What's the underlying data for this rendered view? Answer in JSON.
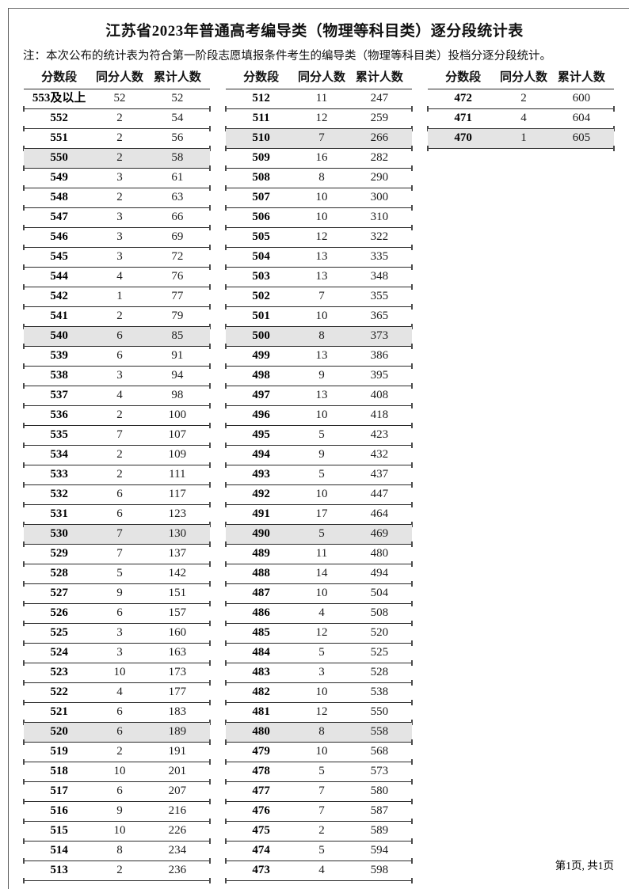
{
  "title": "江苏省2023年普通高考编导类（物理等科目类）逐分段统计表",
  "note": "注：本次公布的统计表为符合第一阶段志愿填报条件考生的编导类（物理等科目类）投档分逐分段统计。",
  "footer": "第1页, 共1页",
  "highlight_color": "#e4e4e4",
  "table": {
    "headers": [
      "分数段",
      "同分人数",
      "累计人数"
    ],
    "columns": [
      {
        "rows": [
          [
            "553及以上",
            52,
            52
          ],
          [
            "552",
            2,
            54
          ],
          [
            "551",
            2,
            56
          ],
          [
            "550",
            2,
            58
          ],
          [
            "549",
            3,
            61
          ],
          [
            "548",
            2,
            63
          ],
          [
            "547",
            3,
            66
          ],
          [
            "546",
            3,
            69
          ],
          [
            "545",
            3,
            72
          ],
          [
            "544",
            4,
            76
          ],
          [
            "542",
            1,
            77
          ],
          [
            "541",
            2,
            79
          ],
          [
            "540",
            6,
            85
          ],
          [
            "539",
            6,
            91
          ],
          [
            "538",
            3,
            94
          ],
          [
            "537",
            4,
            98
          ],
          [
            "536",
            2,
            100
          ],
          [
            "535",
            7,
            107
          ],
          [
            "534",
            2,
            109
          ],
          [
            "533",
            2,
            111
          ],
          [
            "532",
            6,
            117
          ],
          [
            "531",
            6,
            123
          ],
          [
            "530",
            7,
            130
          ],
          [
            "529",
            7,
            137
          ],
          [
            "528",
            5,
            142
          ],
          [
            "527",
            9,
            151
          ],
          [
            "526",
            6,
            157
          ],
          [
            "525",
            3,
            160
          ],
          [
            "524",
            3,
            163
          ],
          [
            "523",
            10,
            173
          ],
          [
            "522",
            4,
            177
          ],
          [
            "521",
            6,
            183
          ],
          [
            "520",
            6,
            189
          ],
          [
            "519",
            2,
            191
          ],
          [
            "518",
            10,
            201
          ],
          [
            "517",
            6,
            207
          ],
          [
            "516",
            9,
            216
          ],
          [
            "515",
            10,
            226
          ],
          [
            "514",
            8,
            234
          ],
          [
            "513",
            2,
            236
          ]
        ]
      },
      {
        "rows": [
          [
            "512",
            11,
            247
          ],
          [
            "511",
            12,
            259
          ],
          [
            "510",
            7,
            266
          ],
          [
            "509",
            16,
            282
          ],
          [
            "508",
            8,
            290
          ],
          [
            "507",
            10,
            300
          ],
          [
            "506",
            10,
            310
          ],
          [
            "505",
            12,
            322
          ],
          [
            "504",
            13,
            335
          ],
          [
            "503",
            13,
            348
          ],
          [
            "502",
            7,
            355
          ],
          [
            "501",
            10,
            365
          ],
          [
            "500",
            8,
            373
          ],
          [
            "499",
            13,
            386
          ],
          [
            "498",
            9,
            395
          ],
          [
            "497",
            13,
            408
          ],
          [
            "496",
            10,
            418
          ],
          [
            "495",
            5,
            423
          ],
          [
            "494",
            9,
            432
          ],
          [
            "493",
            5,
            437
          ],
          [
            "492",
            10,
            447
          ],
          [
            "491",
            17,
            464
          ],
          [
            "490",
            5,
            469
          ],
          [
            "489",
            11,
            480
          ],
          [
            "488",
            14,
            494
          ],
          [
            "487",
            10,
            504
          ],
          [
            "486",
            4,
            508
          ],
          [
            "485",
            12,
            520
          ],
          [
            "484",
            5,
            525
          ],
          [
            "483",
            3,
            528
          ],
          [
            "482",
            10,
            538
          ],
          [
            "481",
            12,
            550
          ],
          [
            "480",
            8,
            558
          ],
          [
            "479",
            10,
            568
          ],
          [
            "478",
            5,
            573
          ],
          [
            "477",
            7,
            580
          ],
          [
            "476",
            7,
            587
          ],
          [
            "475",
            2,
            589
          ],
          [
            "474",
            5,
            594
          ],
          [
            "473",
            4,
            598
          ]
        ]
      },
      {
        "rows": [
          [
            "472",
            2,
            600
          ],
          [
            "471",
            4,
            604
          ],
          [
            "470",
            1,
            605
          ]
        ]
      }
    ]
  }
}
